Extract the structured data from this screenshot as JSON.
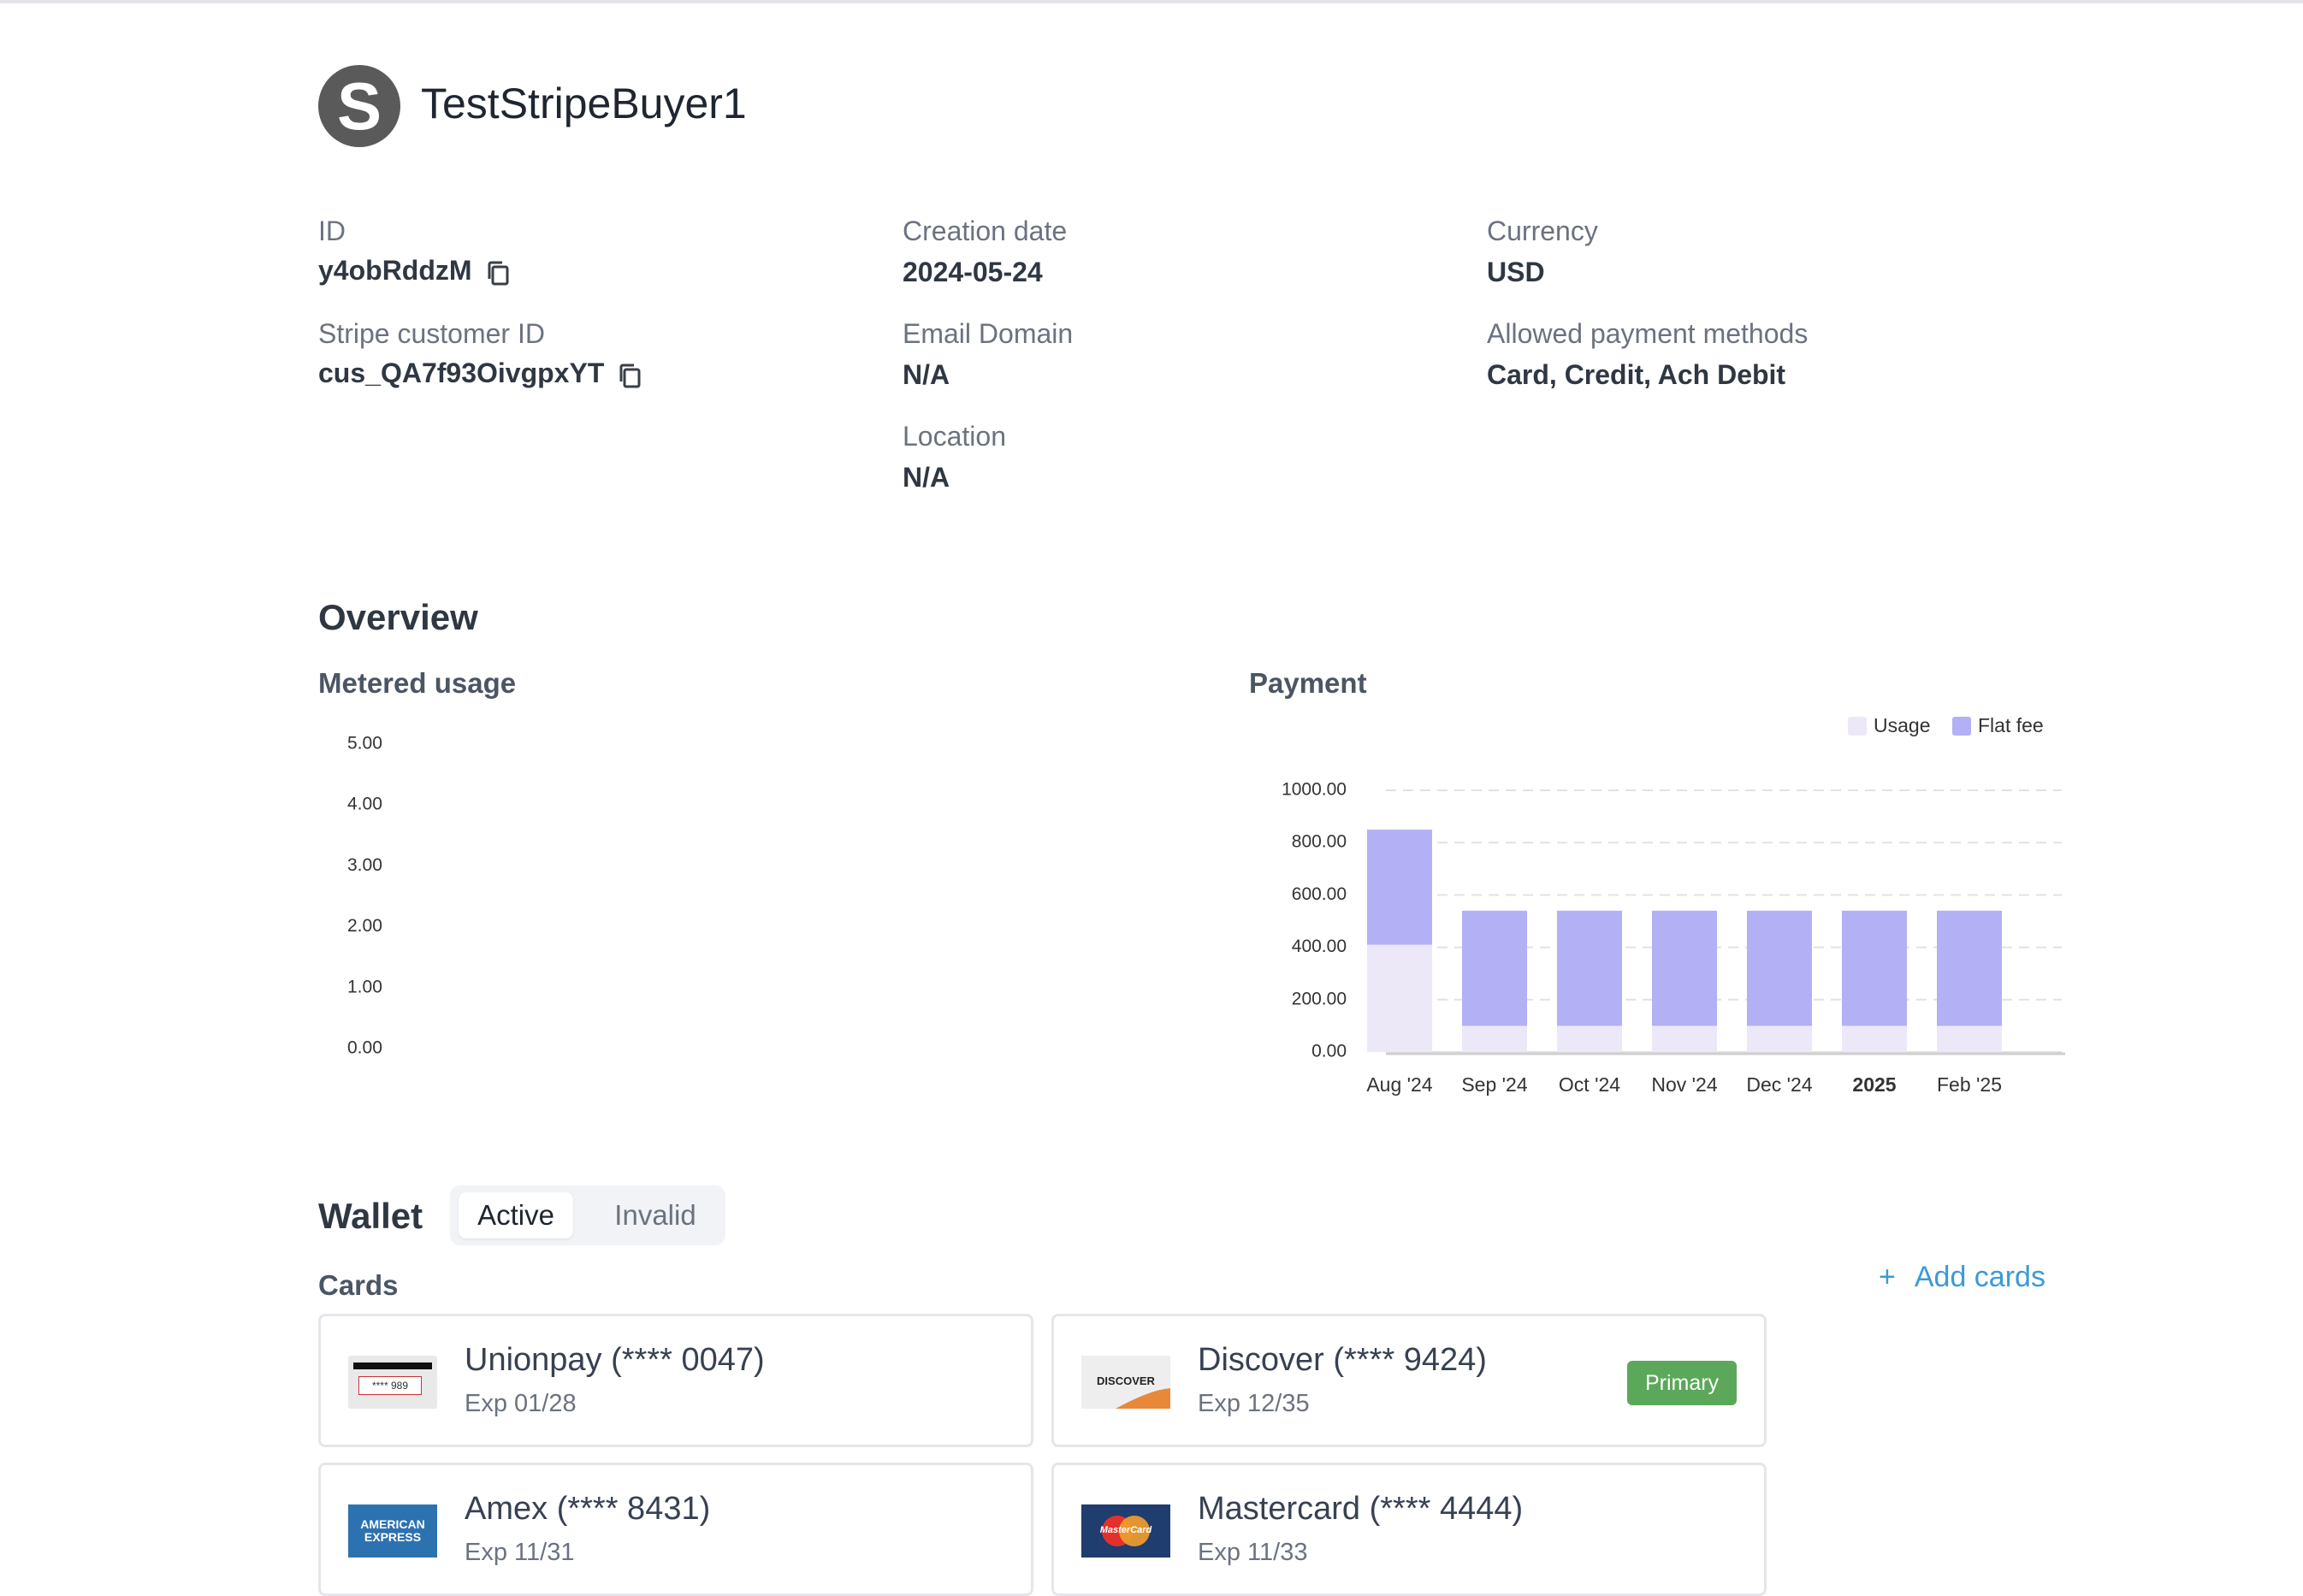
{
  "customer": {
    "avatar_letter": "S",
    "name": "TestStripeBuyer1"
  },
  "fields": {
    "id": {
      "label": "ID",
      "value": "y4obRddzM"
    },
    "creation_date": {
      "label": "Creation date",
      "value": "2024-05-24"
    },
    "currency": {
      "label": "Currency",
      "value": "USD"
    },
    "stripe_customer_id": {
      "label": "Stripe customer ID",
      "value": "cus_QA7f93OivgpxYT"
    },
    "email_domain": {
      "label": "Email Domain",
      "value": "N/A"
    },
    "allowed_payment_methods": {
      "label": "Allowed payment methods",
      "value": "Card, Credit, Ach Debit"
    },
    "location": {
      "label": "Location",
      "value": "N/A"
    }
  },
  "overview": {
    "title": "Overview",
    "metered_usage_title": "Metered usage",
    "payment_title": "Payment"
  },
  "chart_data": [
    {
      "type": "line",
      "title": "Metered usage",
      "y_ticks": [
        "5.00",
        "4.00",
        "3.00",
        "2.00",
        "1.00",
        "0.00"
      ],
      "ylim": [
        0,
        5
      ],
      "series": [],
      "grid": false
    },
    {
      "type": "bar",
      "stacked": true,
      "title": "Payment",
      "categories": [
        "Aug '24",
        "Sep '24",
        "Oct '24",
        "Nov '24",
        "Dec '24",
        "2025",
        "Feb '25"
      ],
      "bold_categories": [
        "2025"
      ],
      "series": [
        {
          "name": "Usage",
          "color": "#ede8f8",
          "values": [
            410,
            100,
            100,
            100,
            100,
            100,
            100
          ]
        },
        {
          "name": "Flat fee",
          "color": "#b3b0f5",
          "values": [
            440,
            440,
            440,
            440,
            440,
            440,
            440
          ]
        }
      ],
      "y_ticks": [
        "1000.00",
        "800.00",
        "600.00",
        "400.00",
        "200.00",
        "0.00"
      ],
      "ylim": [
        0,
        1000
      ],
      "grid": true,
      "legend_position": "top-right"
    }
  ],
  "wallet": {
    "title": "Wallet",
    "tabs": [
      "Active",
      "Invalid"
    ],
    "cards_label": "Cards",
    "add_cards_label": "Add cards",
    "cards": [
      {
        "name": "Unionpay (**** 0047)",
        "exp": "Exp 01/28",
        "primary": false,
        "logo": "unionpay-logo"
      },
      {
        "name": "Discover (**** 9424)",
        "exp": "Exp 12/35",
        "primary": true,
        "primary_label": "Primary",
        "logo": "discover-logo"
      },
      {
        "name": "Amex (**** 8431)",
        "exp": "Exp 11/31",
        "primary": false,
        "logo": "amex-logo"
      },
      {
        "name": "Mastercard (**** 4444)",
        "exp": "Exp 11/33",
        "primary": false,
        "logo": "mastercard-logo"
      }
    ]
  },
  "logos": {
    "unionpay_text": "**** 989",
    "discover_text": "DISCOVER",
    "amex_line1": "AMERICAN",
    "amex_line2": "EXPRESS",
    "mastercard_text": "MasterCard"
  }
}
